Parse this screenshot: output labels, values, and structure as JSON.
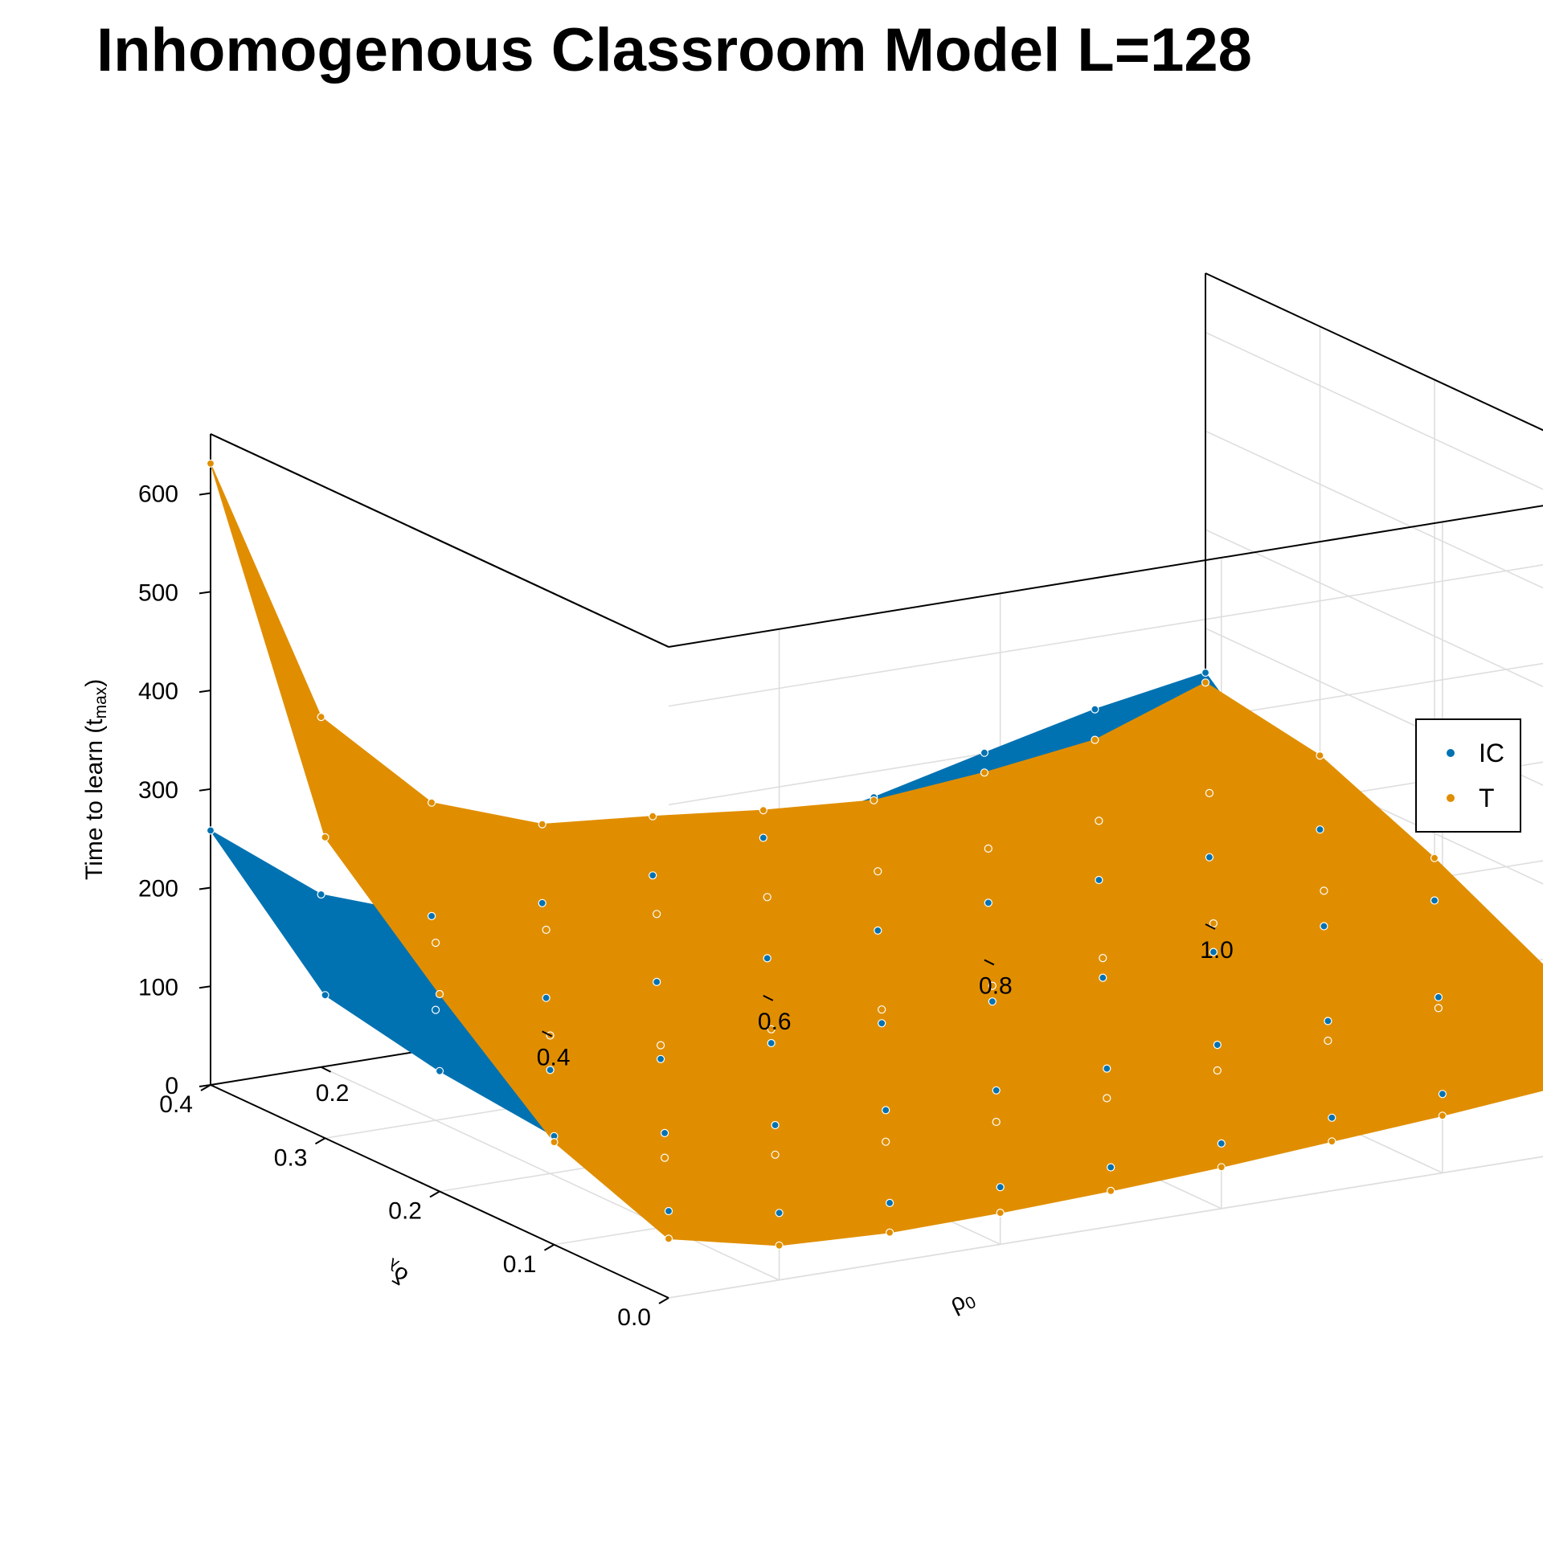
{
  "chart_data": {
    "type": "surface3d",
    "title": "Inhomogenous Classroom Model L=128",
    "zlabel": "Time to learn (t",
    "zlabel_sub": "max",
    "zlabel_close": ")",
    "xlabel": "ρ",
    "xlabel_sub": "0",
    "ylabel": "δ",
    "ylabel_sub": "λ",
    "x_ticks": [
      "0.2",
      "0.4",
      "0.6",
      "0.8",
      "1.0"
    ],
    "y_ticks": [
      "0.0",
      "0.1",
      "0.2",
      "0.3",
      "0.4"
    ],
    "z_ticks": [
      "0",
      "100",
      "200",
      "300",
      "400",
      "500",
      "600"
    ],
    "xlim": [
      0.1,
      1.0
    ],
    "ylim": [
      0.0,
      0.4
    ],
    "zlim": [
      0,
      660
    ],
    "rho": [
      0.1,
      0.2,
      0.3,
      0.4,
      0.5,
      0.6,
      0.7,
      0.8,
      0.9,
      1.0
    ],
    "delta": [
      0.0,
      0.1,
      0.2,
      0.3,
      0.4
    ],
    "legend_position": "right",
    "series": [
      {
        "name": "IC",
        "color": "#0072B2",
        "z": [
          [
            88,
            68,
            60,
            58,
            60,
            66,
            74,
            80,
            87,
            95
          ],
          [
            110,
            95,
            85,
            82,
            84,
            88,
            94,
            100,
            106,
            112
          ],
          [
            122,
            105,
            98,
            96,
            98,
            102,
            108,
            116,
            124,
            132
          ],
          [
            145,
            112,
            106,
            104,
            110,
            120,
            130,
            135,
            140,
            150
          ],
          [
            258,
            175,
            135,
            130,
            140,
            160,
            183,
            210,
            236,
            255
          ]
        ]
      },
      {
        "name": "T",
        "color": "#E08E00",
        "z": [
          [
            60,
            35,
            30,
            32,
            36,
            42,
            50,
            58,
            68,
            80
          ],
          [
            104,
            70,
            55,
            50,
            52,
            58,
            68,
            80,
            95,
            115
          ],
          [
            200,
            140,
            112,
            110,
            112,
            118,
            128,
            145,
            160,
            175
          ],
          [
            305,
            180,
            175,
            173,
            172,
            180,
            185,
            195,
            205,
            225
          ],
          [
            630,
            355,
            250,
            210,
            200,
            188,
            180,
            190,
            205,
            245
          ]
        ]
      }
    ]
  }
}
